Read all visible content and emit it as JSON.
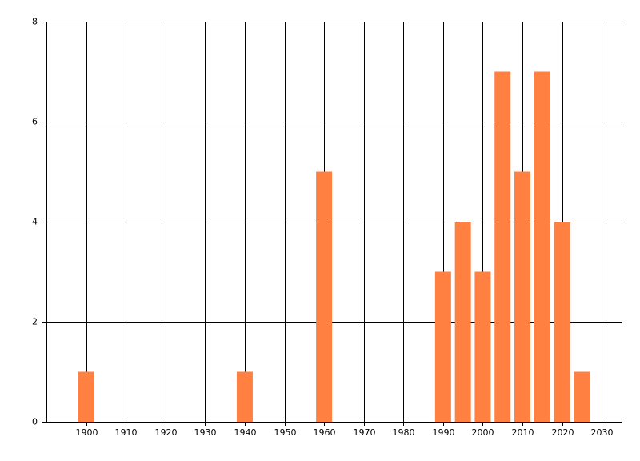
{
  "chart_data": {
    "type": "bar",
    "x": [
      1900,
      1940,
      1960,
      1990,
      1995,
      2000,
      2005,
      2010,
      2015,
      2020,
      2025
    ],
    "values": [
      1,
      1,
      5,
      3,
      4,
      3,
      7,
      5,
      7,
      4,
      1
    ],
    "color": "#ff8040",
    "xlim": [
      1890,
      2035
    ],
    "xticks": [
      1900,
      1910,
      1920,
      1930,
      1940,
      1950,
      1960,
      1970,
      1980,
      1990,
      2000,
      2010,
      2020,
      2030
    ],
    "ylim": [
      0,
      8
    ],
    "yticks": [
      0,
      2,
      4,
      6,
      8
    ],
    "grid": true
  }
}
